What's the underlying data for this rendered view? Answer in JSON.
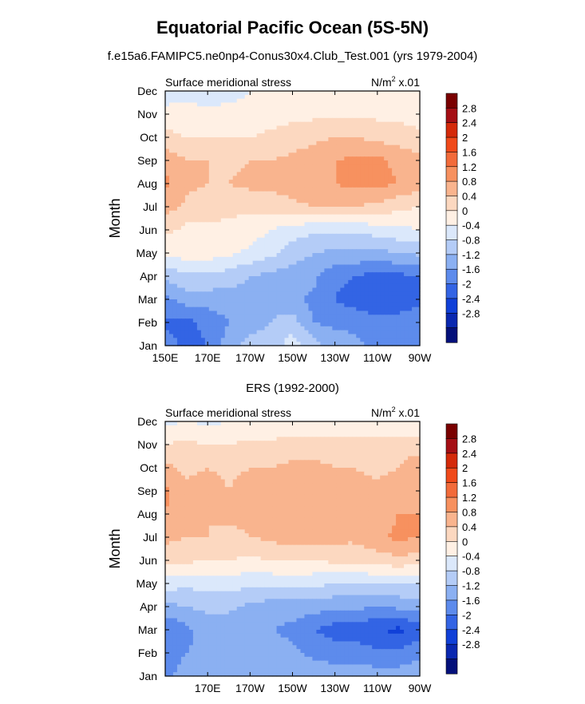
{
  "title": "Equatorial Pacific Ocean (5S-5N)",
  "subtitle": "f.e15a6.FAMIPC5.ne0np4-Conus30x4.Club_Test.001 (yrs 1979-2004)",
  "chart_data": [
    {
      "type": "heatmap",
      "panel_title": "",
      "left_label": "Surface meridional stress",
      "right_label_base": "N/m",
      "right_label_sup": "2",
      "right_label_tail": " x.01",
      "ylabel": "Month",
      "xlabel": "",
      "xlim": [
        150,
        270
      ],
      "x_ticks": [
        {
          "v": 150,
          "label": "150E"
        },
        {
          "v": 170,
          "label": "170E"
        },
        {
          "v": 190,
          "label": "170W"
        },
        {
          "v": 210,
          "label": "150W"
        },
        {
          "v": 230,
          "label": "130W"
        },
        {
          "v": 250,
          "label": "110W"
        },
        {
          "v": 270,
          "label": "90W"
        }
      ],
      "y_ticks": [
        "Jan",
        "Feb",
        "Mar",
        "Apr",
        "May",
        "Jun",
        "Jul",
        "Aug",
        "Sep",
        "Oct",
        "Nov",
        "Dec"
      ],
      "colorbar_labels": [
        "2.8",
        "2.4",
        "2",
        "1.6",
        "1.2",
        "0.8",
        "0.4",
        "0",
        "-0.4",
        "-0.8",
        "-1.2",
        "-1.6",
        "-2",
        "-2.4",
        "-2.8"
      ],
      "colors": [
        "#7a0000",
        "#a50f15",
        "#d42a0a",
        "#f04a1a",
        "#f26b3a",
        "#f7915f",
        "#f9b48e",
        "#fcd8c0",
        "#fff0e4",
        "#dbe8fb",
        "#b4ccf7",
        "#8bb0f2",
        "#5d8bec",
        "#3364e4",
        "#1040d8",
        "#0a28b0",
        "#04107a"
      ],
      "levels": [
        -2.8,
        -2.4,
        -2,
        -1.6,
        -1.2,
        -0.8,
        -0.4,
        0,
        0.4,
        0.8,
        1.2,
        1.6,
        2,
        2.4,
        2.8
      ],
      "lon": [
        150,
        160,
        170,
        180,
        190,
        200,
        210,
        220,
        230,
        240,
        250,
        260,
        270
      ],
      "values": [
        [
          -1.4,
          -1.7,
          -1.6,
          -1.0,
          -0.6,
          -0.6,
          -0.2,
          -0.6,
          -1.0,
          -1.1,
          -1.3,
          -1.3,
          -1.2
        ],
        [
          -1.7,
          -1.7,
          -1.5,
          -1.2,
          -1.0,
          -0.8,
          -0.6,
          -1.2,
          -1.3,
          -1.3,
          -1.5,
          -1.4,
          -1.3
        ],
        [
          -1.3,
          -1.0,
          -1.0,
          -1.0,
          -1.0,
          -0.9,
          -1.1,
          -1.3,
          -1.6,
          -1.8,
          -1.9,
          -1.9,
          -1.7
        ],
        [
          -0.7,
          -0.5,
          -0.5,
          -0.6,
          -0.8,
          -0.9,
          -1.0,
          -1.1,
          -1.5,
          -1.6,
          -1.8,
          -1.7,
          -1.6
        ],
        [
          0.1,
          0.2,
          0.2,
          0.1,
          -0.1,
          -0.3,
          -0.6,
          -0.8,
          -0.9,
          -0.9,
          -0.9,
          -0.8,
          -0.7
        ],
        [
          0.5,
          0.3,
          0.3,
          0.3,
          0.2,
          0.0,
          -0.2,
          -0.3,
          -0.3,
          -0.3,
          -0.2,
          -0.1,
          0.0
        ],
        [
          1.0,
          0.7,
          0.6,
          0.5,
          0.5,
          0.6,
          0.7,
          0.8,
          0.9,
          0.8,
          0.7,
          0.5,
          0.4
        ],
        [
          1.3,
          0.9,
          0.8,
          0.8,
          0.9,
          0.9,
          1.0,
          1.1,
          1.2,
          1.3,
          1.3,
          1.2,
          1.0
        ],
        [
          1.1,
          0.8,
          0.8,
          0.7,
          0.8,
          0.8,
          0.9,
          1.0,
          1.2,
          1.3,
          1.3,
          1.1,
          0.9
        ],
        [
          0.5,
          0.4,
          0.4,
          0.4,
          0.4,
          0.5,
          0.6,
          0.7,
          0.8,
          0.8,
          0.7,
          0.6,
          0.5
        ],
        [
          0.2,
          0.2,
          0.1,
          0.1,
          0.1,
          0.2,
          0.3,
          0.3,
          0.3,
          0.3,
          0.3,
          0.3,
          0.2
        ],
        [
          -0.3,
          -0.2,
          -0.2,
          -0.1,
          0.0,
          0.0,
          0.1,
          0.1,
          0.1,
          0.1,
          0.2,
          0.2,
          0.1
        ]
      ]
    },
    {
      "type": "heatmap",
      "panel_title": "ERS (1992-2000)",
      "left_label": "Surface meridional stress",
      "right_label_base": "N/m",
      "right_label_sup": "2",
      "right_label_tail": " x.01",
      "ylabel": "Month",
      "xlabel": "",
      "xlim": [
        150,
        270
      ],
      "x_ticks": [
        {
          "v": 170,
          "label": "170E"
        },
        {
          "v": 190,
          "label": "170W"
        },
        {
          "v": 210,
          "label": "150W"
        },
        {
          "v": 230,
          "label": "130W"
        },
        {
          "v": 250,
          "label": "110W"
        },
        {
          "v": 270,
          "label": "90W"
        }
      ],
      "y_ticks": [
        "Jan",
        "Feb",
        "Mar",
        "Apr",
        "May",
        "Jun",
        "Jul",
        "Aug",
        "Sep",
        "Oct",
        "Nov",
        "Dec"
      ],
      "colorbar_labels": [
        "2.8",
        "2.4",
        "2",
        "1.6",
        "1.2",
        "0.8",
        "0.4",
        "0",
        "-0.4",
        "-0.8",
        "-1.2",
        "-1.6",
        "-2",
        "-2.4",
        "-2.8"
      ],
      "colors": [
        "#7a0000",
        "#a50f15",
        "#d42a0a",
        "#f04a1a",
        "#f26b3a",
        "#f7915f",
        "#f9b48e",
        "#fcd8c0",
        "#fff0e4",
        "#dbe8fb",
        "#b4ccf7",
        "#8bb0f2",
        "#5d8bec",
        "#3364e4",
        "#1040d8",
        "#0a28b0",
        "#04107a"
      ],
      "levels": [
        -2.8,
        -2.4,
        -2,
        -1.6,
        -1.2,
        -0.8,
        -0.4,
        0,
        0.4,
        0.8,
        1.2,
        1.6,
        2,
        2.4,
        2.8
      ],
      "lon": [
        150,
        160,
        170,
        180,
        190,
        200,
        210,
        220,
        230,
        240,
        250,
        260,
        270
      ],
      "values": [
        [
          -1.3,
          -1.0,
          -1.0,
          -0.9,
          -0.8,
          -0.8,
          -0.8,
          -0.9,
          -1.0,
          -1.0,
          -1.0,
          -1.0,
          -0.9
        ],
        [
          -1.5,
          -1.2,
          -1.1,
          -1.0,
          -1.0,
          -1.0,
          -1.1,
          -1.3,
          -1.4,
          -1.4,
          -1.5,
          -1.5,
          -1.3
        ],
        [
          -1.6,
          -1.3,
          -1.0,
          -1.1,
          -1.1,
          -1.2,
          -1.3,
          -1.6,
          -1.8,
          -1.8,
          -2.0,
          -2.1,
          -1.8
        ],
        [
          -0.9,
          -0.8,
          -0.7,
          -0.7,
          -0.9,
          -1.0,
          -1.0,
          -1.0,
          -1.1,
          -1.1,
          -1.2,
          -1.1,
          -1.0
        ],
        [
          -0.2,
          -0.3,
          -0.2,
          -0.2,
          -0.3,
          -0.3,
          -0.2,
          -0.3,
          -0.4,
          -0.4,
          -0.4,
          -0.4,
          -0.4
        ],
        [
          0.6,
          0.5,
          0.4,
          0.4,
          0.3,
          0.4,
          0.4,
          0.4,
          0.5,
          0.5,
          0.6,
          0.7,
          0.6
        ],
        [
          0.9,
          0.8,
          0.8,
          0.7,
          0.8,
          0.9,
          1.0,
          1.0,
          0.9,
          0.9,
          1.1,
          1.3,
          1.2
        ],
        [
          1.2,
          0.9,
          0.8,
          0.9,
          0.9,
          1.0,
          1.1,
          1.0,
          1.0,
          0.9,
          1.0,
          1.2,
          1.2
        ],
        [
          1.3,
          0.9,
          1.0,
          0.8,
          1.0,
          1.0,
          1.1,
          1.1,
          1.0,
          0.9,
          0.9,
          1.0,
          1.1
        ],
        [
          0.9,
          0.7,
          0.8,
          0.7,
          0.8,
          0.8,
          0.9,
          0.9,
          0.8,
          0.8,
          0.7,
          0.8,
          1.1
        ],
        [
          0.4,
          0.5,
          0.4,
          0.4,
          0.5,
          0.5,
          0.6,
          0.6,
          0.6,
          0.5,
          0.5,
          0.6,
          0.6
        ],
        [
          -0.1,
          0.0,
          -0.1,
          0.0,
          0.1,
          0.0,
          0.0,
          0.1,
          0.1,
          0.2,
          0.2,
          0.1,
          0.1
        ]
      ]
    }
  ]
}
